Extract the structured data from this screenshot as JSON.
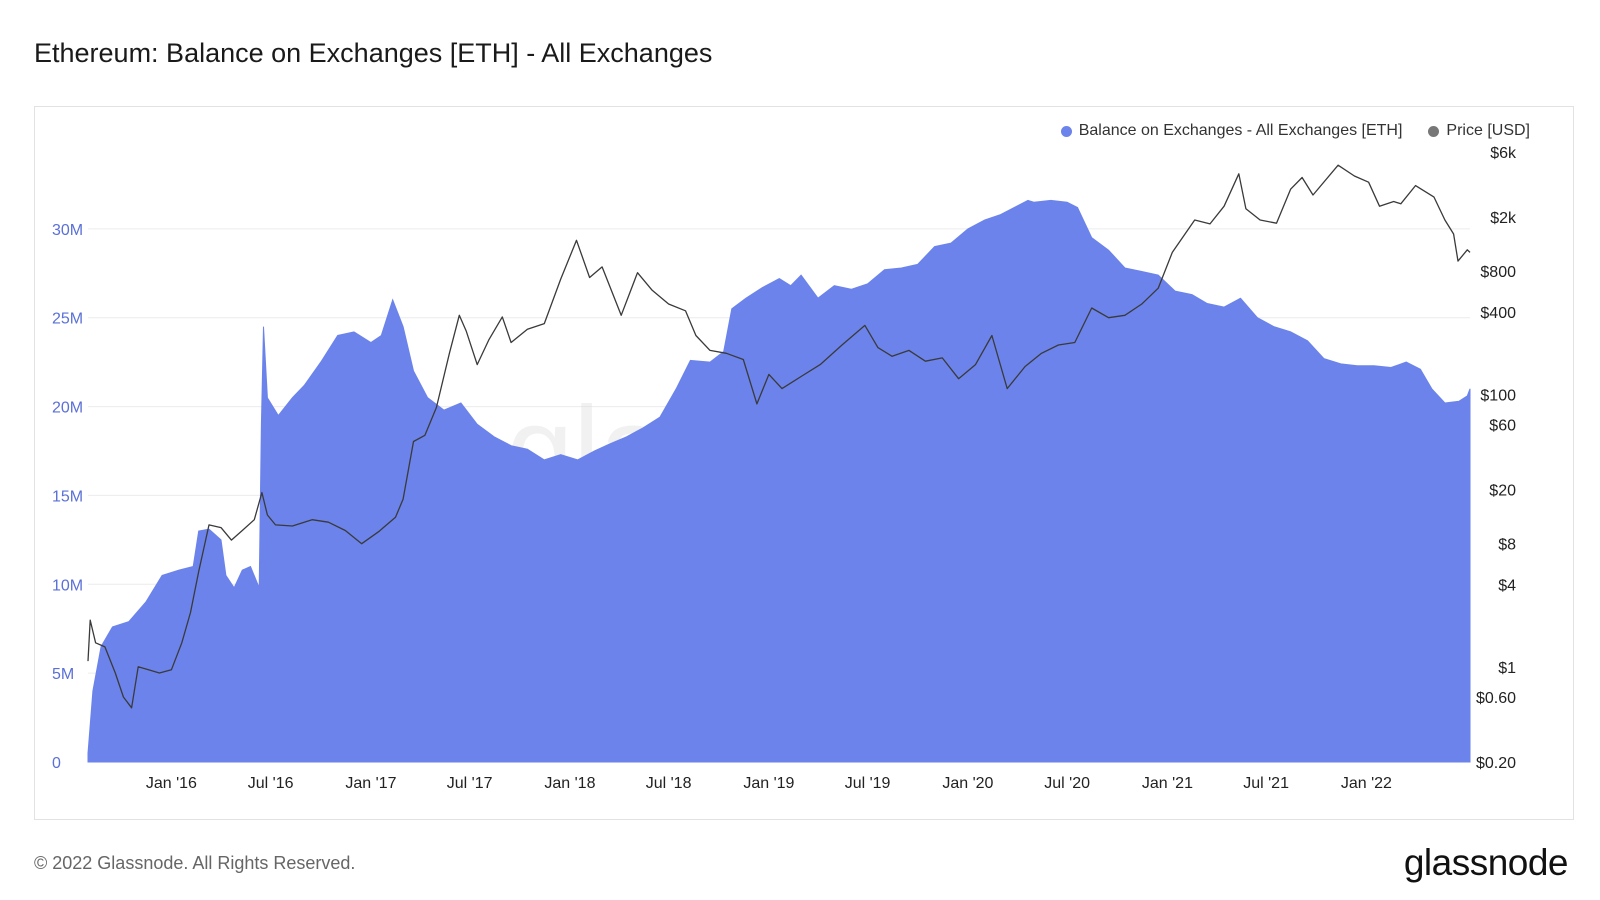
{
  "header": {
    "title": "Ethereum: Balance on Exchanges [ETH] - All Exchanges"
  },
  "legend": [
    {
      "label": "Balance on Exchanges - All Exchanges [ETH]",
      "color": "#6b83ea"
    },
    {
      "label": "Price [USD]",
      "color": "#777777"
    }
  ],
  "footer": {
    "copyright": "© 2022 Glassnode. All Rights Reserved.",
    "logo": "glassnode"
  },
  "colors": {
    "area": "#6b83ea",
    "price_line": "#3a3a3a",
    "axis_text_left": "#5b70d6",
    "axis_text_right": "#222222",
    "grid": "#ececec"
  },
  "chart_data": {
    "type": "area",
    "title": "Ethereum: Balance on Exchanges [ETH] - All Exchanges",
    "x_range": [
      "2015-08-01",
      "2022-07-10"
    ],
    "x_ticks": [
      {
        "date": "2016-01-01",
        "label": "Jan '16"
      },
      {
        "date": "2016-07-01",
        "label": "Jul '16"
      },
      {
        "date": "2017-01-01",
        "label": "Jan '17"
      },
      {
        "date": "2017-07-01",
        "label": "Jul '17"
      },
      {
        "date": "2018-01-01",
        "label": "Jan '18"
      },
      {
        "date": "2018-07-01",
        "label": "Jul '18"
      },
      {
        "date": "2019-01-01",
        "label": "Jan '19"
      },
      {
        "date": "2019-07-01",
        "label": "Jul '19"
      },
      {
        "date": "2020-01-01",
        "label": "Jan '20"
      },
      {
        "date": "2020-07-01",
        "label": "Jul '20"
      },
      {
        "date": "2021-01-01",
        "label": "Jan '21"
      },
      {
        "date": "2021-07-01",
        "label": "Jul '21"
      },
      {
        "date": "2022-01-01",
        "label": "Jan '22"
      }
    ],
    "y_left": {
      "range": [
        0,
        35000000
      ],
      "ticks": [
        0,
        5000000,
        10000000,
        15000000,
        20000000,
        25000000,
        30000000
      ],
      "tick_labels": [
        "0",
        "5M",
        "10M",
        "15M",
        "20M",
        "25M",
        "30M"
      ]
    },
    "y_right": {
      "scale": "log",
      "range": [
        0.2,
        6000
      ],
      "ticks": [
        0.2,
        0.6,
        1,
        4,
        8,
        20,
        60,
        100,
        400,
        800,
        2000,
        6000
      ],
      "tick_labels": [
        "$0.20",
        "$0.60",
        "$1",
        "$4",
        "$8",
        "$20",
        "$60",
        "$100",
        "$400",
        "$800",
        "$2k",
        "$6k"
      ]
    },
    "series": [
      {
        "name": "Balance on Exchanges - All Exchanges [ETH]",
        "type": "area",
        "points": [
          [
            "2015-08-01",
            500000
          ],
          [
            "2015-08-10",
            4000000
          ],
          [
            "2015-08-25",
            6500000
          ],
          [
            "2015-09-15",
            7600000
          ],
          [
            "2015-10-15",
            7900000
          ],
          [
            "2015-11-15",
            9000000
          ],
          [
            "2015-12-15",
            10500000
          ],
          [
            "2016-01-15",
            10800000
          ],
          [
            "2016-02-10",
            11000000
          ],
          [
            "2016-02-20",
            13000000
          ],
          [
            "2016-03-10",
            13100000
          ],
          [
            "2016-04-01",
            12500000
          ],
          [
            "2016-04-10",
            10500000
          ],
          [
            "2016-04-25",
            9800000
          ],
          [
            "2016-05-10",
            10800000
          ],
          [
            "2016-05-25",
            11000000
          ],
          [
            "2016-06-10",
            9800000
          ],
          [
            "2016-06-14",
            19000000
          ],
          [
            "2016-06-18",
            24500000
          ],
          [
            "2016-06-25",
            20500000
          ],
          [
            "2016-07-15",
            19500000
          ],
          [
            "2016-08-10",
            20500000
          ],
          [
            "2016-09-01",
            21200000
          ],
          [
            "2016-10-01",
            22500000
          ],
          [
            "2016-11-01",
            24000000
          ],
          [
            "2016-12-01",
            24200000
          ],
          [
            "2017-01-01",
            23600000
          ],
          [
            "2017-01-20",
            24000000
          ],
          [
            "2017-02-10",
            26000000
          ],
          [
            "2017-03-01",
            24500000
          ],
          [
            "2017-03-20",
            22000000
          ],
          [
            "2017-04-15",
            20500000
          ],
          [
            "2017-05-15",
            19800000
          ],
          [
            "2017-06-15",
            20200000
          ],
          [
            "2017-07-15",
            19000000
          ],
          [
            "2017-08-15",
            18300000
          ],
          [
            "2017-09-15",
            17800000
          ],
          [
            "2017-10-15",
            17600000
          ],
          [
            "2017-11-15",
            17000000
          ],
          [
            "2017-12-15",
            17300000
          ],
          [
            "2018-01-15",
            17000000
          ],
          [
            "2018-02-15",
            17500000
          ],
          [
            "2018-03-15",
            17900000
          ],
          [
            "2018-04-15",
            18300000
          ],
          [
            "2018-05-15",
            18800000
          ],
          [
            "2018-06-15",
            19400000
          ],
          [
            "2018-07-15",
            21000000
          ],
          [
            "2018-08-10",
            22600000
          ],
          [
            "2018-09-15",
            22500000
          ],
          [
            "2018-10-10",
            23100000
          ],
          [
            "2018-10-25",
            25500000
          ],
          [
            "2018-11-20",
            26100000
          ],
          [
            "2018-12-20",
            26700000
          ],
          [
            "2019-01-20",
            27200000
          ],
          [
            "2019-02-10",
            26800000
          ],
          [
            "2019-03-01",
            27400000
          ],
          [
            "2019-04-01",
            26100000
          ],
          [
            "2019-05-01",
            26800000
          ],
          [
            "2019-06-01",
            26600000
          ],
          [
            "2019-07-01",
            26900000
          ],
          [
            "2019-08-01",
            27700000
          ],
          [
            "2019-09-01",
            27800000
          ],
          [
            "2019-10-01",
            28000000
          ],
          [
            "2019-11-01",
            29000000
          ],
          [
            "2019-12-01",
            29200000
          ],
          [
            "2020-01-01",
            30000000
          ],
          [
            "2020-02-01",
            30500000
          ],
          [
            "2020-03-01",
            30800000
          ],
          [
            "2020-04-01",
            31300000
          ],
          [
            "2020-04-20",
            31600000
          ],
          [
            "2020-05-01",
            31500000
          ],
          [
            "2020-06-01",
            31600000
          ],
          [
            "2020-07-01",
            31500000
          ],
          [
            "2020-07-20",
            31200000
          ],
          [
            "2020-08-15",
            29500000
          ],
          [
            "2020-09-15",
            28800000
          ],
          [
            "2020-10-15",
            27800000
          ],
          [
            "2020-11-15",
            27600000
          ],
          [
            "2020-12-15",
            27400000
          ],
          [
            "2021-01-15",
            26500000
          ],
          [
            "2021-02-15",
            26300000
          ],
          [
            "2021-03-15",
            25800000
          ],
          [
            "2021-04-15",
            25600000
          ],
          [
            "2021-05-15",
            26100000
          ],
          [
            "2021-06-15",
            25000000
          ],
          [
            "2021-07-15",
            24500000
          ],
          [
            "2021-08-15",
            24200000
          ],
          [
            "2021-09-15",
            23700000
          ],
          [
            "2021-10-15",
            22700000
          ],
          [
            "2021-11-15",
            22400000
          ],
          [
            "2021-12-15",
            22300000
          ],
          [
            "2022-01-15",
            22300000
          ],
          [
            "2022-02-15",
            22200000
          ],
          [
            "2022-03-15",
            22500000
          ],
          [
            "2022-04-10",
            22100000
          ],
          [
            "2022-05-01",
            21000000
          ],
          [
            "2022-05-25",
            20200000
          ],
          [
            "2022-06-20",
            20300000
          ],
          [
            "2022-07-05",
            20600000
          ],
          [
            "2022-07-10",
            21000000
          ]
        ]
      },
      {
        "name": "Price [USD]",
        "type": "line",
        "axis": "right",
        "points": [
          [
            "2015-08-01",
            1.1
          ],
          [
            "2015-08-05",
            2.2
          ],
          [
            "2015-08-15",
            1.5
          ],
          [
            "2015-09-01",
            1.4
          ],
          [
            "2015-09-20",
            0.9
          ],
          [
            "2015-10-05",
            0.6
          ],
          [
            "2015-10-20",
            0.5
          ],
          [
            "2015-11-01",
            1.0
          ],
          [
            "2015-11-20",
            0.95
          ],
          [
            "2015-12-10",
            0.9
          ],
          [
            "2016-01-01",
            0.95
          ],
          [
            "2016-01-20",
            1.5
          ],
          [
            "2016-02-05",
            2.5
          ],
          [
            "2016-02-20",
            5.0
          ],
          [
            "2016-03-10",
            11
          ],
          [
            "2016-04-01",
            10.5
          ],
          [
            "2016-04-20",
            8.5
          ],
          [
            "2016-05-10",
            10
          ],
          [
            "2016-06-01",
            12
          ],
          [
            "2016-06-15",
            19
          ],
          [
            "2016-06-25",
            13
          ],
          [
            "2016-07-10",
            11
          ],
          [
            "2016-08-10",
            10.8
          ],
          [
            "2016-09-15",
            12
          ],
          [
            "2016-10-15",
            11.5
          ],
          [
            "2016-11-15",
            10
          ],
          [
            "2016-12-15",
            8
          ],
          [
            "2017-01-15",
            9.8
          ],
          [
            "2017-02-15",
            12.5
          ],
          [
            "2017-03-01",
            17
          ],
          [
            "2017-03-20",
            45
          ],
          [
            "2017-04-10",
            50
          ],
          [
            "2017-05-01",
            80
          ],
          [
            "2017-05-25",
            200
          ],
          [
            "2017-06-12",
            380
          ],
          [
            "2017-06-25",
            290
          ],
          [
            "2017-07-15",
            165
          ],
          [
            "2017-08-05",
            250
          ],
          [
            "2017-08-30",
            370
          ],
          [
            "2017-09-15",
            240
          ],
          [
            "2017-10-15",
            300
          ],
          [
            "2017-11-15",
            330
          ],
          [
            "2017-12-15",
            700
          ],
          [
            "2018-01-13",
            1350
          ],
          [
            "2018-02-06",
            720
          ],
          [
            "2018-03-01",
            860
          ],
          [
            "2018-04-05",
            380
          ],
          [
            "2018-05-05",
            780
          ],
          [
            "2018-06-01",
            580
          ],
          [
            "2018-07-01",
            460
          ],
          [
            "2018-08-01",
            410
          ],
          [
            "2018-08-20",
            270
          ],
          [
            "2018-09-15",
            210
          ],
          [
            "2018-10-15",
            200
          ],
          [
            "2018-11-15",
            180
          ],
          [
            "2018-12-10",
            85
          ],
          [
            "2019-01-01",
            140
          ],
          [
            "2019-01-25",
            110
          ],
          [
            "2019-03-01",
            135
          ],
          [
            "2019-04-05",
            165
          ],
          [
            "2019-05-15",
            230
          ],
          [
            "2019-06-26",
            320
          ],
          [
            "2019-07-20",
            220
          ],
          [
            "2019-08-15",
            190
          ],
          [
            "2019-09-15",
            210
          ],
          [
            "2019-10-15",
            175
          ],
          [
            "2019-11-15",
            185
          ],
          [
            "2019-12-15",
            130
          ],
          [
            "2020-01-15",
            165
          ],
          [
            "2020-02-14",
            270
          ],
          [
            "2020-03-13",
            110
          ],
          [
            "2020-04-15",
            160
          ],
          [
            "2020-05-15",
            200
          ],
          [
            "2020-06-15",
            230
          ],
          [
            "2020-07-15",
            240
          ],
          [
            "2020-08-15",
            430
          ],
          [
            "2020-09-15",
            365
          ],
          [
            "2020-10-15",
            380
          ],
          [
            "2020-11-15",
            460
          ],
          [
            "2020-12-15",
            600
          ],
          [
            "2021-01-10",
            1100
          ],
          [
            "2021-02-20",
            1900
          ],
          [
            "2021-03-20",
            1780
          ],
          [
            "2021-04-15",
            2400
          ],
          [
            "2021-05-12",
            4150
          ],
          [
            "2021-05-25",
            2300
          ],
          [
            "2021-06-20",
            1900
          ],
          [
            "2021-07-20",
            1800
          ],
          [
            "2021-08-15",
            3200
          ],
          [
            "2021-09-05",
            3900
          ],
          [
            "2021-09-25",
            2900
          ],
          [
            "2021-11-10",
            4800
          ],
          [
            "2021-12-10",
            4000
          ],
          [
            "2022-01-05",
            3600
          ],
          [
            "2022-01-25",
            2400
          ],
          [
            "2022-02-20",
            2600
          ],
          [
            "2022-03-05",
            2500
          ],
          [
            "2022-04-01",
            3400
          ],
          [
            "2022-05-05",
            2800
          ],
          [
            "2022-05-25",
            1900
          ],
          [
            "2022-06-10",
            1500
          ],
          [
            "2022-06-18",
            950
          ],
          [
            "2022-07-05",
            1150
          ],
          [
            "2022-07-10",
            1100
          ]
        ]
      }
    ],
    "legend_position": "top-right",
    "grid": true
  }
}
